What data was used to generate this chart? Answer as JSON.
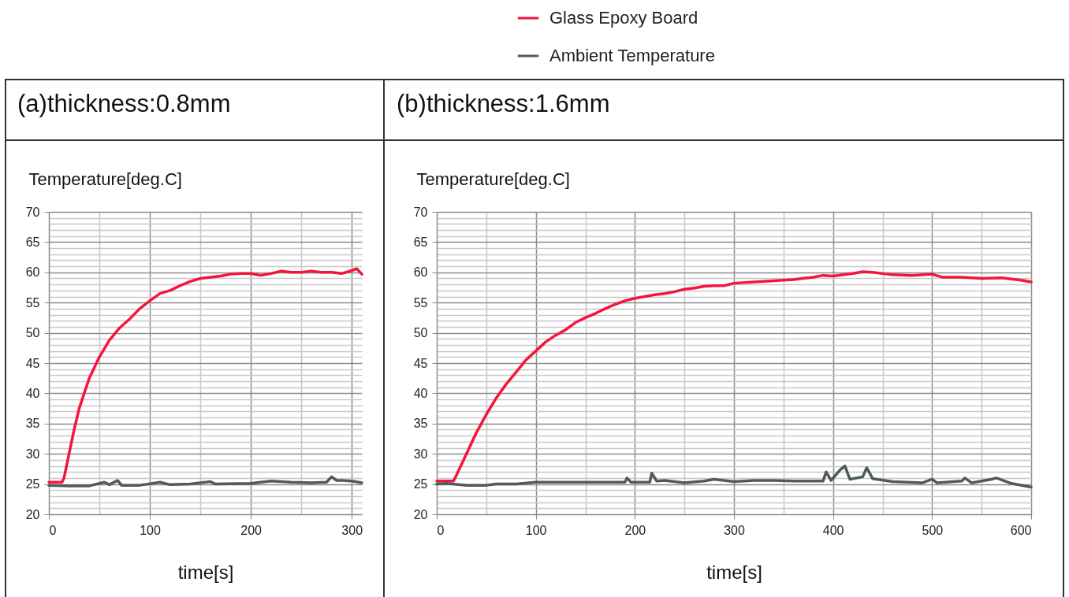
{
  "chart_data": [
    {
      "type": "line",
      "title": "(a)thickness:0.8mm",
      "xlabel": "time[s]",
      "ylabel": "Temperature[deg.C]",
      "grid": true,
      "line_style": "solid",
      "legend": false,
      "xlim": [
        0,
        310
      ],
      "xticks": [
        0,
        {
          "value": 50,
          "label": null
        },
        100,
        {
          "value": 150,
          "label": null
        },
        200,
        {
          "value": 250,
          "label": null
        },
        300
      ],
      "ylim": [
        20,
        70
      ],
      "yticks": [
        20,
        {
          "value": 21,
          "label": null
        },
        {
          "value": 22,
          "label": null
        },
        {
          "value": 23,
          "label": null
        },
        {
          "value": 24,
          "label": null
        },
        25,
        {
          "value": 26,
          "label": null
        },
        {
          "value": 27,
          "label": null
        },
        {
          "value": 28,
          "label": null
        },
        {
          "value": 29,
          "label": null
        },
        30,
        {
          "value": 31,
          "label": null
        },
        {
          "value": 32,
          "label": null
        },
        {
          "value": 33,
          "label": null
        },
        {
          "value": 34,
          "label": null
        },
        35,
        {
          "value": 36,
          "label": null
        },
        {
          "value": 37,
          "label": null
        },
        {
          "value": 38,
          "label": null
        },
        {
          "value": 39,
          "label": null
        },
        40,
        {
          "value": 41,
          "label": null
        },
        {
          "value": 42,
          "label": null
        },
        {
          "value": 43,
          "label": null
        },
        {
          "value": 44,
          "label": null
        },
        45,
        {
          "value": 46,
          "label": null
        },
        {
          "value": 47,
          "label": null
        },
        {
          "value": 48,
          "label": null
        },
        {
          "value": 49,
          "label": null
        },
        50,
        {
          "value": 51,
          "label": null
        },
        {
          "value": 52,
          "label": null
        },
        {
          "value": 53,
          "label": null
        },
        {
          "value": 54,
          "label": null
        },
        55,
        {
          "value": 56,
          "label": null
        },
        {
          "value": 57,
          "label": null
        },
        {
          "value": 58,
          "label": null
        },
        {
          "value": 59,
          "label": null
        },
        60,
        {
          "value": 61,
          "label": null
        },
        {
          "value": 62,
          "label": null
        },
        {
          "value": 63,
          "label": null
        },
        {
          "value": 64,
          "label": null
        },
        65,
        {
          "value": 66,
          "label": null
        },
        {
          "value": 67,
          "label": null
        },
        {
          "value": 68,
          "label": null
        },
        {
          "value": 69,
          "label": null
        },
        70
      ],
      "series": [
        {
          "color": "#f5153c",
          "x": [
            0,
            13,
            15,
            20,
            25,
            30,
            40,
            50,
            60,
            70,
            80,
            90,
            100,
            110,
            120,
            130,
            140,
            150,
            160,
            170,
            180,
            190,
            200,
            210,
            220,
            230,
            240,
            250,
            260,
            270,
            280,
            290,
            300,
            305,
            310
          ],
          "values": [
            25.3,
            25.3,
            26,
            30,
            34,
            37.5,
            42.5,
            46,
            48.8,
            50.8,
            52.3,
            54,
            55.3,
            56.5,
            57,
            57.8,
            58.5,
            59,
            59.2,
            59.4,
            59.7,
            59.8,
            59.8,
            59.5,
            59.8,
            60.2,
            60,
            60,
            60.2,
            60,
            60,
            59.8,
            60.3,
            60.6,
            59.7
          ]
        },
        {
          "color": "#4f5a5a",
          "x": [
            0,
            20,
            40,
            55,
            60,
            68,
            72,
            90,
            110,
            120,
            140,
            160,
            165,
            200,
            220,
            240,
            260,
            275,
            280,
            285,
            290,
            300,
            310
          ],
          "values": [
            24.8,
            24.7,
            24.7,
            25.3,
            24.9,
            25.6,
            24.8,
            24.8,
            25.3,
            24.9,
            25,
            25.4,
            25,
            25.1,
            25.5,
            25.3,
            25.2,
            25.3,
            26.2,
            25.6,
            25.6,
            25.5,
            25.2
          ]
        }
      ]
    },
    {
      "type": "line",
      "title": "(b)thickness:1.6mm",
      "xlabel": "time[s]",
      "ylabel": "Temperature[deg.C]",
      "grid": true,
      "line_style": "solid",
      "legend": "top",
      "xlim": [
        0,
        600
      ],
      "xticks": [
        0,
        {
          "value": 50,
          "label": null
        },
        100,
        {
          "value": 150,
          "label": null
        },
        200,
        {
          "value": 250,
          "label": null
        },
        300,
        {
          "value": 350,
          "label": null
        },
        400,
        {
          "value": 450,
          "label": null
        },
        500,
        {
          "value": 550,
          "label": null
        },
        600
      ],
      "ylim": [
        20,
        70
      ],
      "yticks": [
        20,
        {
          "value": 21,
          "label": null
        },
        {
          "value": 22,
          "label": null
        },
        {
          "value": 23,
          "label": null
        },
        {
          "value": 24,
          "label": null
        },
        25,
        {
          "value": 26,
          "label": null
        },
        {
          "value": 27,
          "label": null
        },
        {
          "value": 28,
          "label": null
        },
        {
          "value": 29,
          "label": null
        },
        30,
        {
          "value": 31,
          "label": null
        },
        {
          "value": 32,
          "label": null
        },
        {
          "value": 33,
          "label": null
        },
        {
          "value": 34,
          "label": null
        },
        35,
        {
          "value": 36,
          "label": null
        },
        {
          "value": 37,
          "label": null
        },
        {
          "value": 38,
          "label": null
        },
        {
          "value": 39,
          "label": null
        },
        40,
        {
          "value": 41,
          "label": null
        },
        {
          "value": 42,
          "label": null
        },
        {
          "value": 43,
          "label": null
        },
        {
          "value": 44,
          "label": null
        },
        45,
        {
          "value": 46,
          "label": null
        },
        {
          "value": 47,
          "label": null
        },
        {
          "value": 48,
          "label": null
        },
        {
          "value": 49,
          "label": null
        },
        50,
        {
          "value": 51,
          "label": null
        },
        {
          "value": 52,
          "label": null
        },
        {
          "value": 53,
          "label": null
        },
        {
          "value": 54,
          "label": null
        },
        55,
        {
          "value": 56,
          "label": null
        },
        {
          "value": 57,
          "label": null
        },
        {
          "value": 58,
          "label": null
        },
        {
          "value": 59,
          "label": null
        },
        60,
        {
          "value": 61,
          "label": null
        },
        {
          "value": 62,
          "label": null
        },
        {
          "value": 63,
          "label": null
        },
        {
          "value": 64,
          "label": null
        },
        65,
        {
          "value": 66,
          "label": null
        },
        {
          "value": 67,
          "label": null
        },
        {
          "value": 68,
          "label": null
        },
        {
          "value": 69,
          "label": null
        },
        70
      ],
      "series": [
        {
          "name": "Glass Epoxy Board",
          "color": "#f5153c",
          "x": [
            0,
            17,
            20,
            30,
            40,
            50,
            60,
            70,
            80,
            90,
            100,
            110,
            120,
            130,
            140,
            150,
            160,
            170,
            180,
            190,
            200,
            210,
            220,
            230,
            240,
            250,
            260,
            270,
            280,
            290,
            300,
            320,
            340,
            360,
            380,
            390,
            400,
            420,
            430,
            440,
            460,
            480,
            500,
            510,
            530,
            550,
            570,
            590,
            600
          ],
          "values": [
            25.5,
            25.5,
            26.5,
            30,
            33.5,
            36.5,
            39.2,
            41.5,
            43.5,
            45.5,
            47,
            48.5,
            49.6,
            50.5,
            51.7,
            52.5,
            53.2,
            54,
            54.7,
            55.3,
            55.7,
            56,
            56.3,
            56.5,
            56.8,
            57.2,
            57.4,
            57.7,
            57.8,
            57.8,
            58.2,
            58.4,
            58.6,
            58.8,
            59.2,
            59.5,
            59.4,
            59.8,
            60.1,
            60,
            59.6,
            59.5,
            59.7,
            59.2,
            59.2,
            59,
            59.1,
            58.7,
            58.4
          ]
        },
        {
          "name": "Ambient Temperature",
          "color": "#4f5a5a",
          "x": [
            0,
            10,
            30,
            50,
            60,
            80,
            100,
            150,
            190,
            192,
            196,
            215,
            217,
            222,
            230,
            250,
            270,
            280,
            300,
            320,
            340,
            360,
            390,
            393,
            398,
            407,
            412,
            417,
            430,
            434,
            440,
            460,
            490,
            500,
            505,
            530,
            533,
            540,
            560,
            565,
            580,
            600
          ],
          "values": [
            25,
            25.1,
            24.8,
            24.8,
            25,
            25,
            25.3,
            25.3,
            25.3,
            26,
            25.3,
            25.3,
            26.8,
            25.5,
            25.6,
            25.2,
            25.5,
            25.8,
            25.4,
            25.6,
            25.6,
            25.5,
            25.5,
            27,
            25.6,
            27.3,
            28,
            25.8,
            26.2,
            27.7,
            25.9,
            25.4,
            25.2,
            25.8,
            25.2,
            25.5,
            26,
            25.2,
            25.8,
            26,
            25.1,
            24.5
          ]
        }
      ]
    }
  ]
}
